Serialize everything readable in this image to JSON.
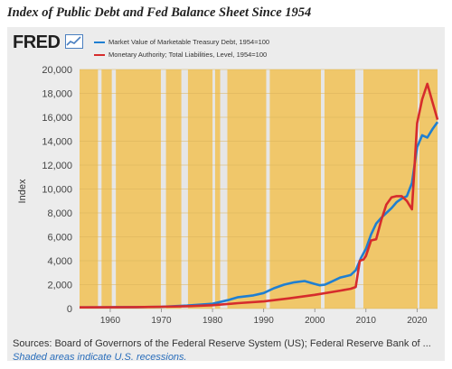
{
  "page_title": "Index of Public Debt and Fed Balance Sheet Since 1954",
  "brand": {
    "logo_text": "FRED"
  },
  "source_text": "Sources: Board of Governors of the Federal Reserve System (US); Federal Reserve Bank of ...",
  "note_text": "Shaded areas indicate U.S. recessions.",
  "colors": {
    "background_band": "#f0c76a",
    "recession": "#e6e6e6",
    "panel": "#ececec",
    "series_blue": "#1f7fd1",
    "series_red": "#d62c2c"
  },
  "chart_data": {
    "type": "line",
    "title": "",
    "xlabel": "",
    "ylabel": "Index",
    "xlim": [
      1954,
      2024
    ],
    "ylim": [
      0,
      20000
    ],
    "yticks": [
      0,
      2000,
      4000,
      6000,
      8000,
      10000,
      12000,
      14000,
      16000,
      18000,
      20000
    ],
    "ytick_labels": [
      "0",
      "2,000",
      "4,000",
      "6,000",
      "8,000",
      "10,000",
      "12,000",
      "14,000",
      "16,000",
      "18,000",
      "20,000"
    ],
    "xticks": [
      1960,
      1970,
      1980,
      1990,
      2000,
      2010,
      2020
    ],
    "xtick_labels": [
      "1960",
      "1970",
      "1980",
      "1990",
      "2000",
      "2010",
      "2020"
    ],
    "recessions": [
      [
        1957.6,
        1958.3
      ],
      [
        1960.3,
        1961.1
      ],
      [
        1969.9,
        1970.9
      ],
      [
        1973.9,
        1975.2
      ],
      [
        1980.0,
        1980.5
      ],
      [
        1981.5,
        1982.9
      ],
      [
        1990.5,
        1991.2
      ],
      [
        2001.2,
        2001.9
      ],
      [
        2007.9,
        2009.5
      ],
      [
        2020.1,
        2020.4
      ]
    ],
    "series": [
      {
        "name": "Market Value of Marketable Treasury Debt, 1954=100",
        "color": "#1f7fd1",
        "points": [
          [
            1954,
            100
          ],
          [
            1960,
            110
          ],
          [
            1965,
            120
          ],
          [
            1970,
            150
          ],
          [
            1975,
            250
          ],
          [
            1980,
            400
          ],
          [
            1983,
            700
          ],
          [
            1985,
            950
          ],
          [
            1988,
            1100
          ],
          [
            1990,
            1300
          ],
          [
            1992,
            1700
          ],
          [
            1994,
            2000
          ],
          [
            1996,
            2200
          ],
          [
            1998,
            2300
          ],
          [
            2000,
            2050
          ],
          [
            2001,
            1950
          ],
          [
            2002,
            2000
          ],
          [
            2003,
            2200
          ],
          [
            2005,
            2600
          ],
          [
            2007,
            2800
          ],
          [
            2008,
            3200
          ],
          [
            2009,
            4200
          ],
          [
            2010,
            5000
          ],
          [
            2011,
            6200
          ],
          [
            2012,
            7100
          ],
          [
            2013,
            7600
          ],
          [
            2014,
            8000
          ],
          [
            2015,
            8400
          ],
          [
            2016,
            8900
          ],
          [
            2017,
            9200
          ],
          [
            2018,
            9400
          ],
          [
            2019,
            10500
          ],
          [
            2020,
            13500
          ],
          [
            2021,
            14500
          ],
          [
            2022,
            14300
          ],
          [
            2023,
            15000
          ],
          [
            2024,
            15600
          ]
        ]
      },
      {
        "name": "Monetary Authority; Total Liabilities, Level, 1954=100",
        "color": "#d62c2c",
        "points": [
          [
            1954,
            100
          ],
          [
            1960,
            105
          ],
          [
            1965,
            120
          ],
          [
            1970,
            150
          ],
          [
            1975,
            200
          ],
          [
            1980,
            280
          ],
          [
            1985,
            450
          ],
          [
            1990,
            600
          ],
          [
            1995,
            850
          ],
          [
            2000,
            1150
          ],
          [
            2005,
            1500
          ],
          [
            2007,
            1650
          ],
          [
            2008,
            1800
          ],
          [
            2008.8,
            4000
          ],
          [
            2009.5,
            4100
          ],
          [
            2010,
            4400
          ],
          [
            2011,
            5700
          ],
          [
            2012,
            5800
          ],
          [
            2013,
            7400
          ],
          [
            2014,
            8700
          ],
          [
            2015,
            9300
          ],
          [
            2016,
            9400
          ],
          [
            2017,
            9400
          ],
          [
            2018,
            9000
          ],
          [
            2019,
            8300
          ],
          [
            2020,
            15500
          ],
          [
            2021,
            17500
          ],
          [
            2022,
            18800
          ],
          [
            2023,
            17300
          ],
          [
            2024,
            15800
          ]
        ]
      }
    ]
  }
}
